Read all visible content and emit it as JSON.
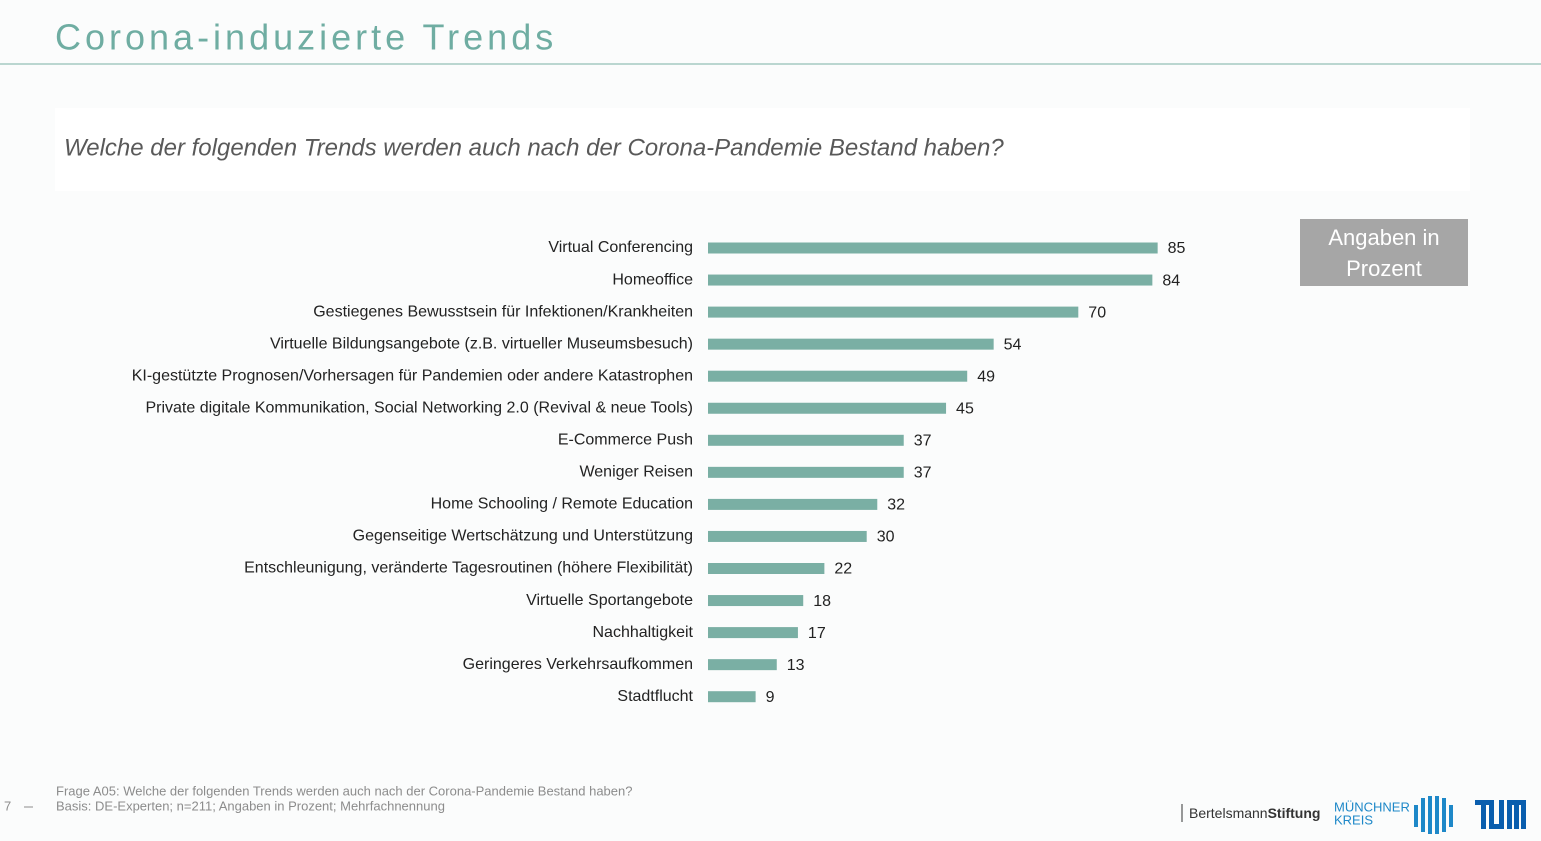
{
  "chart_data": {
    "type": "barh",
    "title": "Corona-induzierte Trends",
    "subtitle": "Welche der folgenden Trends werden auch nach der Corona-Pandemie Bestand haben?",
    "note": "Angaben in Prozent",
    "categories": [
      "Virtual Conferencing",
      "Homeoffice",
      "Gestiegenes Bewusstsein für Infektionen/Krankheiten",
      "Virtuelle Bildungsangebote (z.B. virtueller Museumsbesuch)",
      "KI-gestützte Prognosen/Vorhersagen für Pandemien oder andere Katastrophen",
      "Private digitale Kommunikation, Social Networking 2.0 (Revival & neue Tools)",
      "E-Commerce Push",
      "Weniger Reisen",
      "Home Schooling / Remote Education",
      "Gegenseitige Wertschätzung und Unterstützung",
      "Entschleunigung, veränderte Tagesroutinen (höhere Flexibilität)",
      "Virtuelle Sportangebote",
      "Nachhaltigkeit",
      "Geringeres Verkehrsaufkommen",
      "Stadtflucht"
    ],
    "values": [
      85,
      84,
      70,
      54,
      49,
      45,
      37,
      37,
      32,
      30,
      22,
      18,
      17,
      13,
      9
    ],
    "color": "#7aafa4"
  },
  "footer": {
    "question": "Frage A05: Welche der folgenden Trends werden auch nach der Corona-Pandemie Bestand haben?",
    "basis": "Basis: DE-Experten; n=211; Angaben in Prozent; Mehrfachnennung",
    "page": "7",
    "logo_bertelsmann": "Bertelsmann",
    "logo_stiftung": "Stiftung",
    "logo_muenchner": "MÜNCHNER",
    "logo_kreis": "KREIS"
  }
}
